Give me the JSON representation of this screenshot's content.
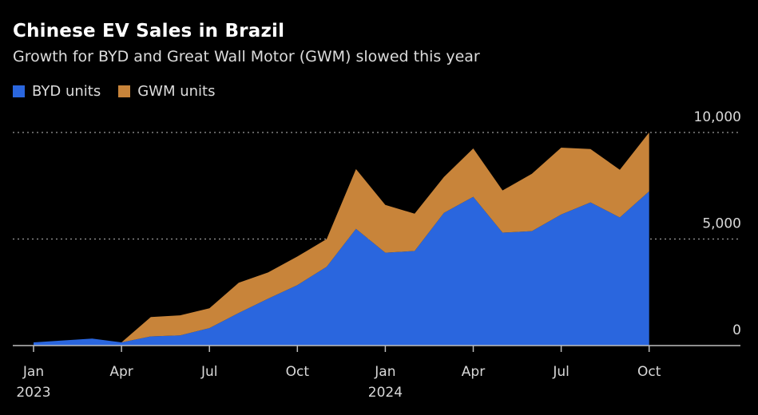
{
  "title": "Chinese EV Sales in Brazil",
  "subtitle": "Growth for BYD and Great Wall Motor (GWM) slowed this year",
  "legend": [
    {
      "label": "BYD units",
      "color": "#2a66de"
    },
    {
      "label": "GWM units",
      "color": "#c8843a"
    }
  ],
  "chart_data": {
    "type": "area",
    "stacked": true,
    "title": "Chinese EV Sales in Brazil",
    "subtitle": "Growth for BYD and Great Wall Motor (GWM) slowed this year",
    "xlabel": "",
    "ylabel": "",
    "x": [
      "2023-01",
      "2023-02",
      "2023-03",
      "2023-04",
      "2023-05",
      "2023-06",
      "2023-07",
      "2023-08",
      "2023-09",
      "2023-10",
      "2023-11",
      "2023-12",
      "2024-01",
      "2024-02",
      "2024-03",
      "2024-04",
      "2024-05",
      "2024-06",
      "2024-07",
      "2024-08",
      "2024-09",
      "2024-10"
    ],
    "series": [
      {
        "name": "BYD units",
        "color": "#2a66de",
        "values": [
          150,
          240,
          330,
          150,
          430,
          480,
          820,
          1530,
          2200,
          2840,
          3700,
          5480,
          4360,
          4440,
          6230,
          6980,
          5300,
          5370,
          6150,
          6720,
          6010,
          7240
        ]
      },
      {
        "name": "GWM units",
        "color": "#c8843a",
        "values": [
          0,
          0,
          0,
          0,
          910,
          940,
          930,
          1420,
          1230,
          1340,
          1300,
          2800,
          2240,
          1750,
          1680,
          2270,
          1980,
          2690,
          3140,
          2500,
          2240,
          2760
        ]
      }
    ],
    "ylim": [
      0,
      10000
    ],
    "y_ticks": [
      {
        "value": 0,
        "label": "0"
      },
      {
        "value": 5000,
        "label": "5,000"
      },
      {
        "value": 10000,
        "label": "10,000"
      }
    ],
    "x_ticks": [
      {
        "x": "2023-01",
        "label": "Jan",
        "sublabel": "2023"
      },
      {
        "x": "2023-04",
        "label": "Apr",
        "sublabel": ""
      },
      {
        "x": "2023-07",
        "label": "Jul",
        "sublabel": ""
      },
      {
        "x": "2023-10",
        "label": "Oct",
        "sublabel": ""
      },
      {
        "x": "2024-01",
        "label": "Jan",
        "sublabel": "2024"
      },
      {
        "x": "2024-04",
        "label": "Apr",
        "sublabel": ""
      },
      {
        "x": "2024-07",
        "label": "Jul",
        "sublabel": ""
      },
      {
        "x": "2024-10",
        "label": "Oct",
        "sublabel": ""
      }
    ],
    "grid": "horizontal-dotted",
    "legend_position": "top-left",
    "y_axis_position": "right"
  }
}
